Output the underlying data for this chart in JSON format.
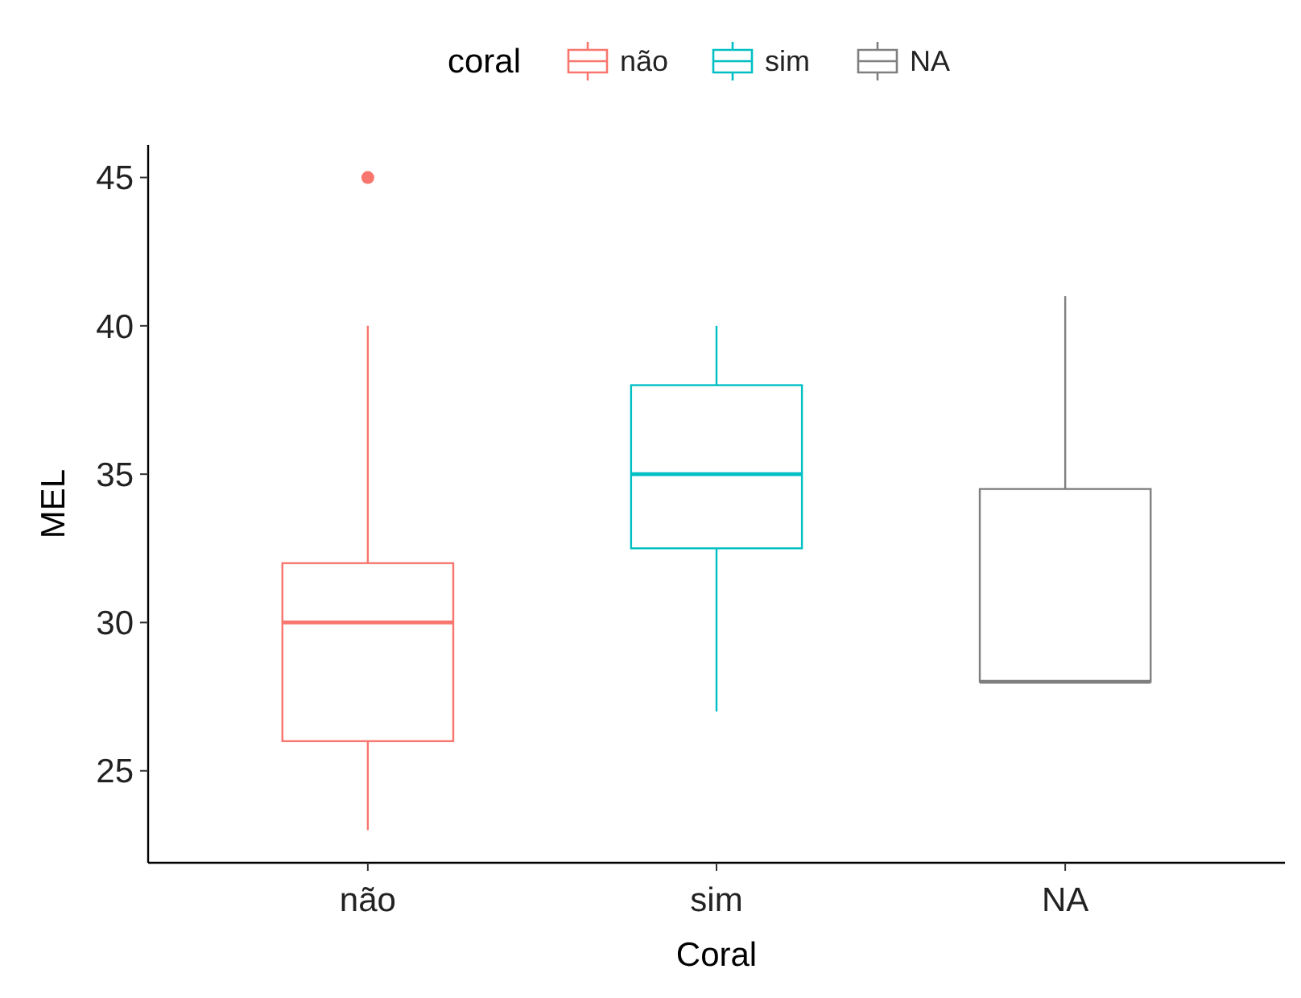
{
  "chart_data": {
    "type": "box",
    "xlabel": "Coral",
    "ylabel": "MEL",
    "legend_title": "coral",
    "legend": "top",
    "grid": false,
    "categories": [
      "não",
      "sim",
      "NA"
    ],
    "series": [
      {
        "name": "não",
        "color": "#f8766d",
        "boxes": [
          {
            "low": 23,
            "q1": 26,
            "median": 30,
            "q3": 32,
            "high": 40,
            "outliers": [
              45
            ]
          },
          null,
          null
        ]
      },
      {
        "name": "sim",
        "color": "#00bfc4",
        "boxes": [
          null,
          {
            "low": 27,
            "q1": 32.5,
            "median": 35,
            "q3": 38,
            "high": 40
          },
          null
        ]
      },
      {
        "name": "NA",
        "color": "#7f7f7f",
        "boxes": [
          null,
          null,
          {
            "low": 28,
            "q1": 28,
            "median": 28,
            "q3": 34.5,
            "high": 41
          }
        ]
      }
    ],
    "ylim": [
      21.9,
      46.1
    ],
    "yticks": [
      25,
      30,
      35,
      40,
      45
    ]
  }
}
